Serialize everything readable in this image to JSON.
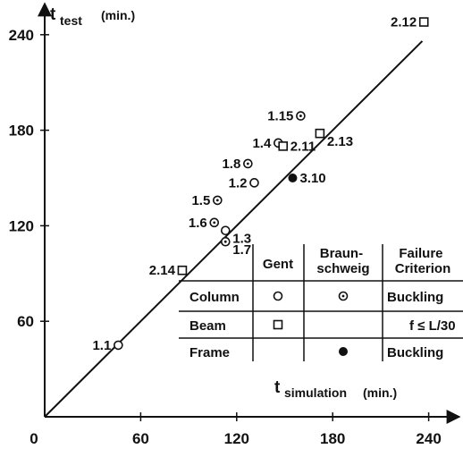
{
  "chart_data": {
    "type": "scatter",
    "xlabel": {
      "main": "t",
      "sub": "simulation",
      "unit": "(min.)"
    },
    "ylabel": {
      "main": "t",
      "sub": "test",
      "unit": "(min.)"
    },
    "xlim": [
      0,
      260
    ],
    "ylim": [
      0,
      260
    ],
    "xticks": [
      "0",
      "60",
      "120",
      "180",
      "240"
    ],
    "yticks": [
      "60",
      "120",
      "180",
      "240"
    ],
    "xtick_values": [
      0,
      60,
      120,
      180,
      240
    ],
    "ytick_values": [
      60,
      120,
      180,
      240
    ],
    "grid": false,
    "reference_line": {
      "type": "identity",
      "from": [
        0,
        0
      ],
      "to": [
        236,
        236
      ]
    },
    "points": [
      {
        "label": "1.1",
        "x": 46,
        "y": 45,
        "marker": "circle",
        "label_pos": "left"
      },
      {
        "label": "1.2",
        "x": 131,
        "y": 147,
        "marker": "circle",
        "label_pos": "left"
      },
      {
        "label": "1.3",
        "x": 113,
        "y": 117,
        "marker": "circle",
        "label_pos": "right-below"
      },
      {
        "label": "1.4",
        "x": 146,
        "y": 172,
        "marker": "circle",
        "label_pos": "left"
      },
      {
        "label": "1.5",
        "x": 108,
        "y": 136,
        "marker": "circle-dot",
        "label_pos": "left"
      },
      {
        "label": "1.6",
        "x": 106,
        "y": 122,
        "marker": "circle-dot",
        "label_pos": "left"
      },
      {
        "label": "1.7",
        "x": 113,
        "y": 110,
        "marker": "circle-dot",
        "label_pos": "right-below"
      },
      {
        "label": "1.8",
        "x": 127,
        "y": 159,
        "marker": "circle-dot",
        "label_pos": "left"
      },
      {
        "label": "1.15",
        "x": 160,
        "y": 189,
        "marker": "circle-dot",
        "label_pos": "left"
      },
      {
        "label": "2.11",
        "x": 149,
        "y": 170,
        "marker": "square",
        "label_pos": "right"
      },
      {
        "label": "2.12",
        "x": 237,
        "y": 248,
        "marker": "square",
        "label_pos": "left"
      },
      {
        "label": "2.13",
        "x": 172,
        "y": 178,
        "marker": "square",
        "label_pos": "right-below"
      },
      {
        "label": "2.14",
        "x": 86,
        "y": 92,
        "marker": "square",
        "label_pos": "left"
      },
      {
        "label": "3.10",
        "x": 155,
        "y": 150,
        "marker": "filled-circle",
        "label_pos": "right"
      }
    ],
    "legend": {
      "placement": "bottom-right",
      "headers": [
        "",
        "Gent",
        "Braun-\nschweig",
        "Failure\nCriterion"
      ],
      "rows": [
        {
          "name": "Column",
          "gent_marker": "circle",
          "braunschweig_marker": "circle-dot",
          "criterion": "Buckling"
        },
        {
          "name": "Beam",
          "gent_marker": "square",
          "braunschweig_marker": "",
          "criterion": "f ≤ L/30"
        },
        {
          "name": "Frame",
          "gent_marker": "",
          "braunschweig_marker": "filled-circle",
          "criterion": "Buckling"
        }
      ]
    }
  }
}
